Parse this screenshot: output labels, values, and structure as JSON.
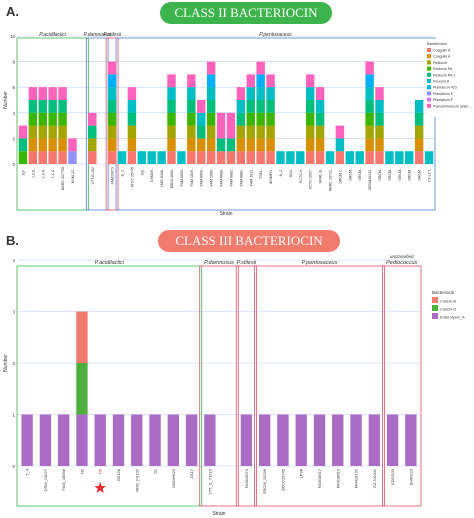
{
  "panel_a": {
    "letter": "A.",
    "banner": "CLASS II BACTERIOCIN",
    "banner_color": "#3cb44b"
  },
  "panel_b": {
    "letter": "B.",
    "banner": "CLASS III BACTERIOCIN",
    "banner_color": "#f07a6c"
  },
  "chart_data": [
    {
      "type": "bar",
      "stacked": true,
      "xlabel": "Strain",
      "ylabel": "Number",
      "ylim": [
        0,
        10
      ],
      "yticks": [
        0,
        2,
        4,
        6,
        8,
        10
      ],
      "legend_title": "Bacteriocin",
      "legend_position": "top-right",
      "groups": [
        {
          "name": "P.acidilactici",
          "color": "#3cb44b",
          "start": 0,
          "end": 6
        },
        {
          "name": "P.damnosus",
          "color": "#4a7fd0",
          "start": 7,
          "end": 8
        },
        {
          "name": "P.stilesii",
          "color": "#e0506a",
          "start": 9,
          "end": 9
        },
        {
          "name": "P.pentosaceus",
          "color": "#4a7fd0",
          "start": 10,
          "end": 41
        }
      ],
      "series": [
        {
          "name": "Coagulin A",
          "color": "#f8766d"
        },
        {
          "name": "Coagulin A",
          "color": "#d89000"
        },
        {
          "name": "Pediocin",
          "color": "#a3a500"
        },
        {
          "name": "Pediocin PA",
          "color": "#39b600"
        },
        {
          "name": "Pediocin PA-1",
          "color": "#00bf7d"
        },
        {
          "name": "Penocin A",
          "color": "#00bfc4"
        },
        {
          "name": "Plantaricin 423",
          "color": "#00b0f6"
        },
        {
          "name": "Plantaricin E",
          "color": "#9590ff"
        },
        {
          "name": "Plantaricin F",
          "color": "#e76bf3"
        },
        {
          "name": "Pseudomonocin avian ...",
          "color": "#ff62bc"
        }
      ],
      "categories": [
        "JQ-...",
        "LZ-8...",
        "LX-8...",
        "LX-8...",
        "NBRC 107768",
        "NSM-22...",
        "",
        "VTT-E-152",
        "",
        "FAM19073",
        "B_1...",
        "ATCC 25745",
        "BS...",
        "DSM20...",
        "LMG-8286...",
        "B8D0-1800...",
        "FAM 8600...",
        "FAM 1839...",
        "FAM 8600...",
        "FAM 1960...",
        "FAM 8888...",
        "FAM 8882...",
        "FAM 8881...",
        "FAM 1911...",
        "TSEL...",
        "IDSMPO...",
        "B_2...",
        "KN2...",
        "KCTC-6...",
        "KCTC-3507...",
        "NRRL-B...",
        "NBRC 10721...",
        "SRCM 1...",
        "SRCM...",
        "SRCM...",
        "SRCM10211...",
        "SRCM...",
        "SRCM...",
        "SRCM...",
        "SRCM...",
        "SRCM...",
        "TS-LCT..."
      ],
      "stacks": [
        [
          0,
          0,
          0,
          1,
          1,
          0,
          0,
          0,
          0,
          1
        ],
        [
          1,
          1,
          1,
          1,
          1,
          0,
          0,
          0,
          0,
          1
        ],
        [
          1,
          1,
          1,
          1,
          1,
          0,
          0,
          0,
          0,
          1
        ],
        [
          1,
          1,
          1,
          1,
          1,
          0,
          0,
          0,
          0,
          1
        ],
        [
          1,
          1,
          1,
          1,
          1,
          0,
          0,
          0,
          0,
          1
        ],
        [
          0,
          0,
          0,
          0,
          0,
          0,
          0,
          1,
          0,
          1
        ],
        [
          0,
          0,
          0,
          0,
          0,
          0,
          0,
          0,
          0,
          0
        ],
        [
          1,
          0,
          1,
          0,
          1,
          0,
          0,
          0,
          0,
          1
        ],
        [
          0,
          0,
          0,
          0,
          0,
          0,
          0,
          0,
          0,
          0
        ],
        [
          1,
          1,
          1,
          1,
          1,
          1,
          1,
          0,
          0,
          1
        ],
        [
          0,
          0,
          0,
          0,
          0,
          1,
          0,
          0,
          0,
          0
        ],
        [
          1,
          1,
          1,
          0,
          1,
          1,
          0,
          0,
          0,
          1
        ],
        [
          0,
          0,
          0,
          0,
          0,
          1,
          0,
          0,
          0,
          0
        ],
        [
          0,
          0,
          0,
          0,
          0,
          1,
          0,
          0,
          0,
          0
        ],
        [
          0,
          0,
          0,
          0,
          0,
          1,
          0,
          0,
          0,
          0
        ],
        [
          1,
          1,
          1,
          1,
          1,
          1,
          0,
          0,
          0,
          1
        ],
        [
          0,
          0,
          0,
          0,
          0,
          1,
          0,
          0,
          0,
          0
        ],
        [
          1,
          1,
          1,
          1,
          1,
          1,
          0,
          0,
          0,
          1
        ],
        [
          1,
          1,
          0,
          0,
          1,
          1,
          0,
          0,
          0,
          1
        ],
        [
          1,
          1,
          1,
          1,
          1,
          1,
          1,
          0,
          0,
          1
        ],
        [
          1,
          0,
          0,
          0,
          1,
          0,
          0,
          0,
          0,
          2
        ],
        [
          1,
          0,
          0,
          0,
          1,
          0,
          0,
          0,
          0,
          2
        ],
        [
          1,
          1,
          1,
          0,
          1,
          1,
          0,
          0,
          0,
          1
        ],
        [
          1,
          1,
          1,
          1,
          1,
          1,
          0,
          0,
          0,
          1
        ],
        [
          1,
          1,
          1,
          1,
          1,
          1,
          1,
          0,
          0,
          1
        ],
        [
          1,
          1,
          1,
          1,
          1,
          1,
          0,
          0,
          0,
          1
        ],
        [
          0,
          0,
          0,
          0,
          0,
          1,
          0,
          0,
          0,
          0
        ],
        [
          0,
          0,
          0,
          0,
          0,
          1,
          0,
          0,
          0,
          0
        ],
        [
          0,
          0,
          0,
          0,
          0,
          1,
          0,
          0,
          0,
          0
        ],
        [
          1,
          1,
          1,
          1,
          1,
          1,
          0,
          0,
          0,
          1
        ],
        [
          1,
          1,
          1,
          0,
          1,
          1,
          0,
          0,
          0,
          1
        ],
        [
          0,
          0,
          0,
          0,
          0,
          1,
          0,
          0,
          0,
          0
        ],
        [
          1,
          0,
          0,
          0,
          0,
          1,
          0,
          0,
          0,
          1
        ],
        [
          0,
          0,
          0,
          0,
          0,
          1,
          0,
          0,
          0,
          0
        ],
        [
          0,
          0,
          0,
          0,
          0,
          1,
          0,
          0,
          0,
          0
        ],
        [
          1,
          1,
          1,
          1,
          1,
          1,
          1,
          0,
          0,
          1
        ],
        [
          1,
          1,
          1,
          0,
          1,
          1,
          0,
          0,
          0,
          1
        ],
        [
          0,
          0,
          0,
          0,
          0,
          1,
          0,
          0,
          0,
          0
        ],
        [
          0,
          0,
          0,
          0,
          0,
          1,
          0,
          0,
          0,
          0
        ],
        [
          0,
          0,
          0,
          0,
          0,
          1,
          0,
          0,
          0,
          0
        ],
        [
          1,
          1,
          1,
          0,
          1,
          1,
          0,
          0,
          0,
          0
        ],
        [
          0,
          0,
          0,
          0,
          0,
          1,
          0,
          0,
          0,
          0
        ]
      ]
    },
    {
      "type": "bar",
      "stacked": true,
      "xlabel": "Strain",
      "ylabel": "Number",
      "ylim": [
        0,
        4
      ],
      "yticks": [
        0,
        1,
        2,
        3,
        4
      ],
      "legend_title": "Bacteriocin",
      "legend_position": "right",
      "groups": [
        {
          "name": "P.acidilactici",
          "color": "#3cb44b",
          "start": 0,
          "end": 9
        },
        {
          "name": "P.damnosus",
          "color": "#e0506a",
          "start": 10,
          "end": 11
        },
        {
          "name": "P.stilesii",
          "color": "#e0506a",
          "start": 12,
          "end": 12
        },
        {
          "name": "P.pentosaceus",
          "color": "#e0506a",
          "start": 13,
          "end": 19
        },
        {
          "name": "Pediococcus",
          "prefix": "unclassified",
          "color": "#e0506a",
          "start": 20,
          "end": 21
        }
      ],
      "series": [
        {
          "name": "Enterolysin_A",
          "color": "#a96bc4"
        },
        {
          "name": "Colicin-D",
          "color": "#4caf3d"
        },
        {
          "name": "Colicin-B",
          "color": "#f07a6c"
        }
      ],
      "categories": [
        "T_4",
        "DSM_14027",
        "FAM_18098",
        "H2",
        "H3",
        "BZ128",
        "MNB_FS102",
        "S1",
        "GBNHN20",
        "ZA17",
        "VTT_E_73215",
        "",
        "FAM19073",
        "SRCM_10236",
        "ATCC25745",
        "LP38",
        "FAM18517",
        "FAM18615",
        "FAM19132",
        "GZ-NX001",
        "EDGC03",
        "EMKG20"
      ],
      "highlight_label": "H3",
      "highlight_marker": "red-star",
      "stacks": [
        [
          1,
          0,
          0
        ],
        [
          1,
          0,
          0
        ],
        [
          1,
          0,
          0
        ],
        [
          1,
          1,
          1
        ],
        [
          1,
          0,
          0
        ],
        [
          1,
          0,
          0
        ],
        [
          1,
          0,
          0
        ],
        [
          1,
          0,
          0
        ],
        [
          1,
          0,
          0
        ],
        [
          1,
          0,
          0
        ],
        [
          1,
          0,
          0
        ],
        [
          0,
          0,
          0
        ],
        [
          1,
          0,
          0
        ],
        [
          1,
          0,
          0
        ],
        [
          1,
          0,
          0
        ],
        [
          1,
          0,
          0
        ],
        [
          1,
          0,
          0
        ],
        [
          1,
          0,
          0
        ],
        [
          1,
          0,
          0
        ],
        [
          1,
          0,
          0
        ],
        [
          1,
          0,
          0
        ],
        [
          1,
          0,
          0
        ]
      ]
    }
  ]
}
